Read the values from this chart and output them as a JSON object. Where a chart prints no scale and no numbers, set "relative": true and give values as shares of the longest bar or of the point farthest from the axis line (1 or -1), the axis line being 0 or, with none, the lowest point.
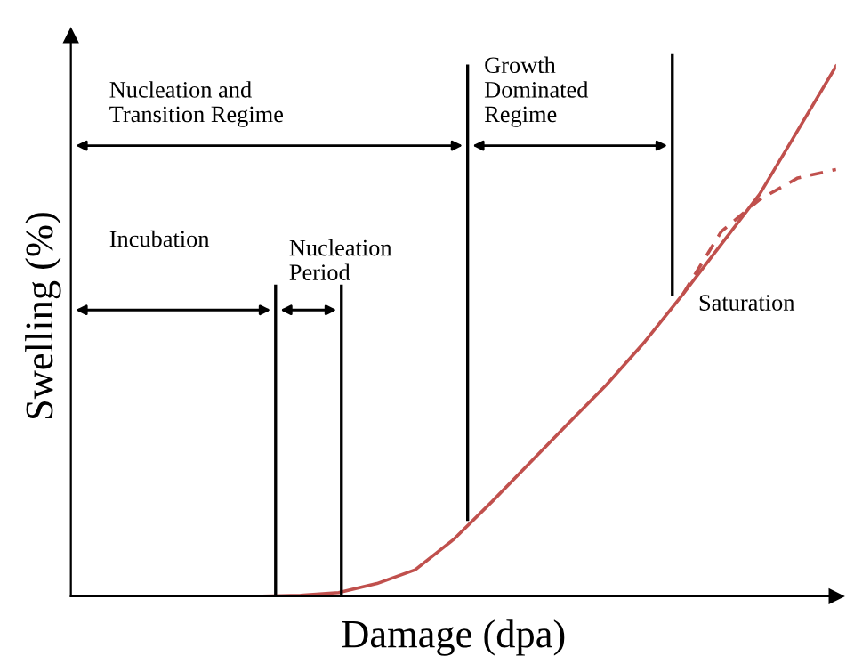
{
  "chart_data": {
    "type": "line",
    "relative": true,
    "xlabel": "Damage (dpa)",
    "ylabel": "Swelling (%)",
    "categories": [
      null,
      null,
      null,
      null,
      null,
      null,
      null,
      null,
      null,
      null,
      null,
      null,
      null,
      null,
      null,
      null,
      null,
      null,
      null,
      null,
      null
    ],
    "series": [
      {
        "color": "#c0504d",
        "line_style": "solid",
        "values": [
          null,
          null,
          null,
          null,
          null,
          0,
          0.002,
          0.007,
          0.024,
          0.05,
          0.107,
          0.178,
          0.252,
          0.326,
          0.399,
          0.48,
          0.57,
          0.664,
          0.758,
          0.879,
          1.0
        ]
      },
      {
        "color": "#c0504d",
        "line_style": "dashed",
        "values": [
          null,
          null,
          null,
          null,
          null,
          null,
          null,
          null,
          null,
          null,
          null,
          null,
          null,
          null,
          null,
          null,
          0.57,
          0.688,
          0.748,
          0.789,
          0.805
        ]
      }
    ],
    "annotations": [
      "Nucleation and\nTransition Regime",
      "Growth\nDominated\nRegime",
      "Incubation",
      "Nucleation\nPeriod",
      "Saturation"
    ]
  }
}
